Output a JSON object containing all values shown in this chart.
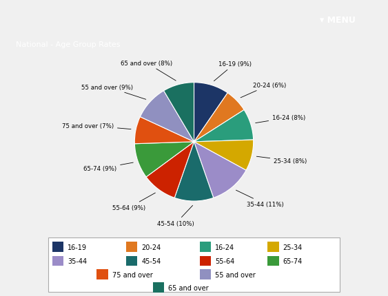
{
  "title": "National - Age Group Rates",
  "labels": [
    "16-19",
    "20-24",
    "16-24",
    "25-34",
    "35-44",
    "45-54",
    "55-64",
    "65-74",
    "75 and over",
    "55 and over",
    "65 and over"
  ],
  "sizes": [
    9,
    6,
    8,
    8,
    11,
    10,
    9,
    9,
    7,
    9,
    8
  ],
  "colors": [
    "#1c3566",
    "#e07820",
    "#2a9d7c",
    "#d4a800",
    "#9b8cc8",
    "#1a6b6b",
    "#cc2200",
    "#3a9a3a",
    "#e05010",
    "#9090c0",
    "#1a7060"
  ],
  "pct_labels": [
    "16-19 (9%)",
    "20-24 (6%)",
    "16-24 (8%)",
    "25-34 (8%)",
    "35-44 (11%)",
    "45-54 (10%)",
    "55-64 (9%)",
    "65-74 (9%)",
    "75 and over (7%)",
    "55 and over (9%)",
    "65 and over (8%)"
  ],
  "header_bg": "#636363",
  "header_text": "National - Age Group Rates",
  "top_bg": "#f0f0f0",
  "menu_bg": "#c0392b",
  "chart_bg": "#ffffff",
  "border_color": "#cccccc",
  "figsize": [
    5.63,
    4.31
  ],
  "dpi": 100
}
